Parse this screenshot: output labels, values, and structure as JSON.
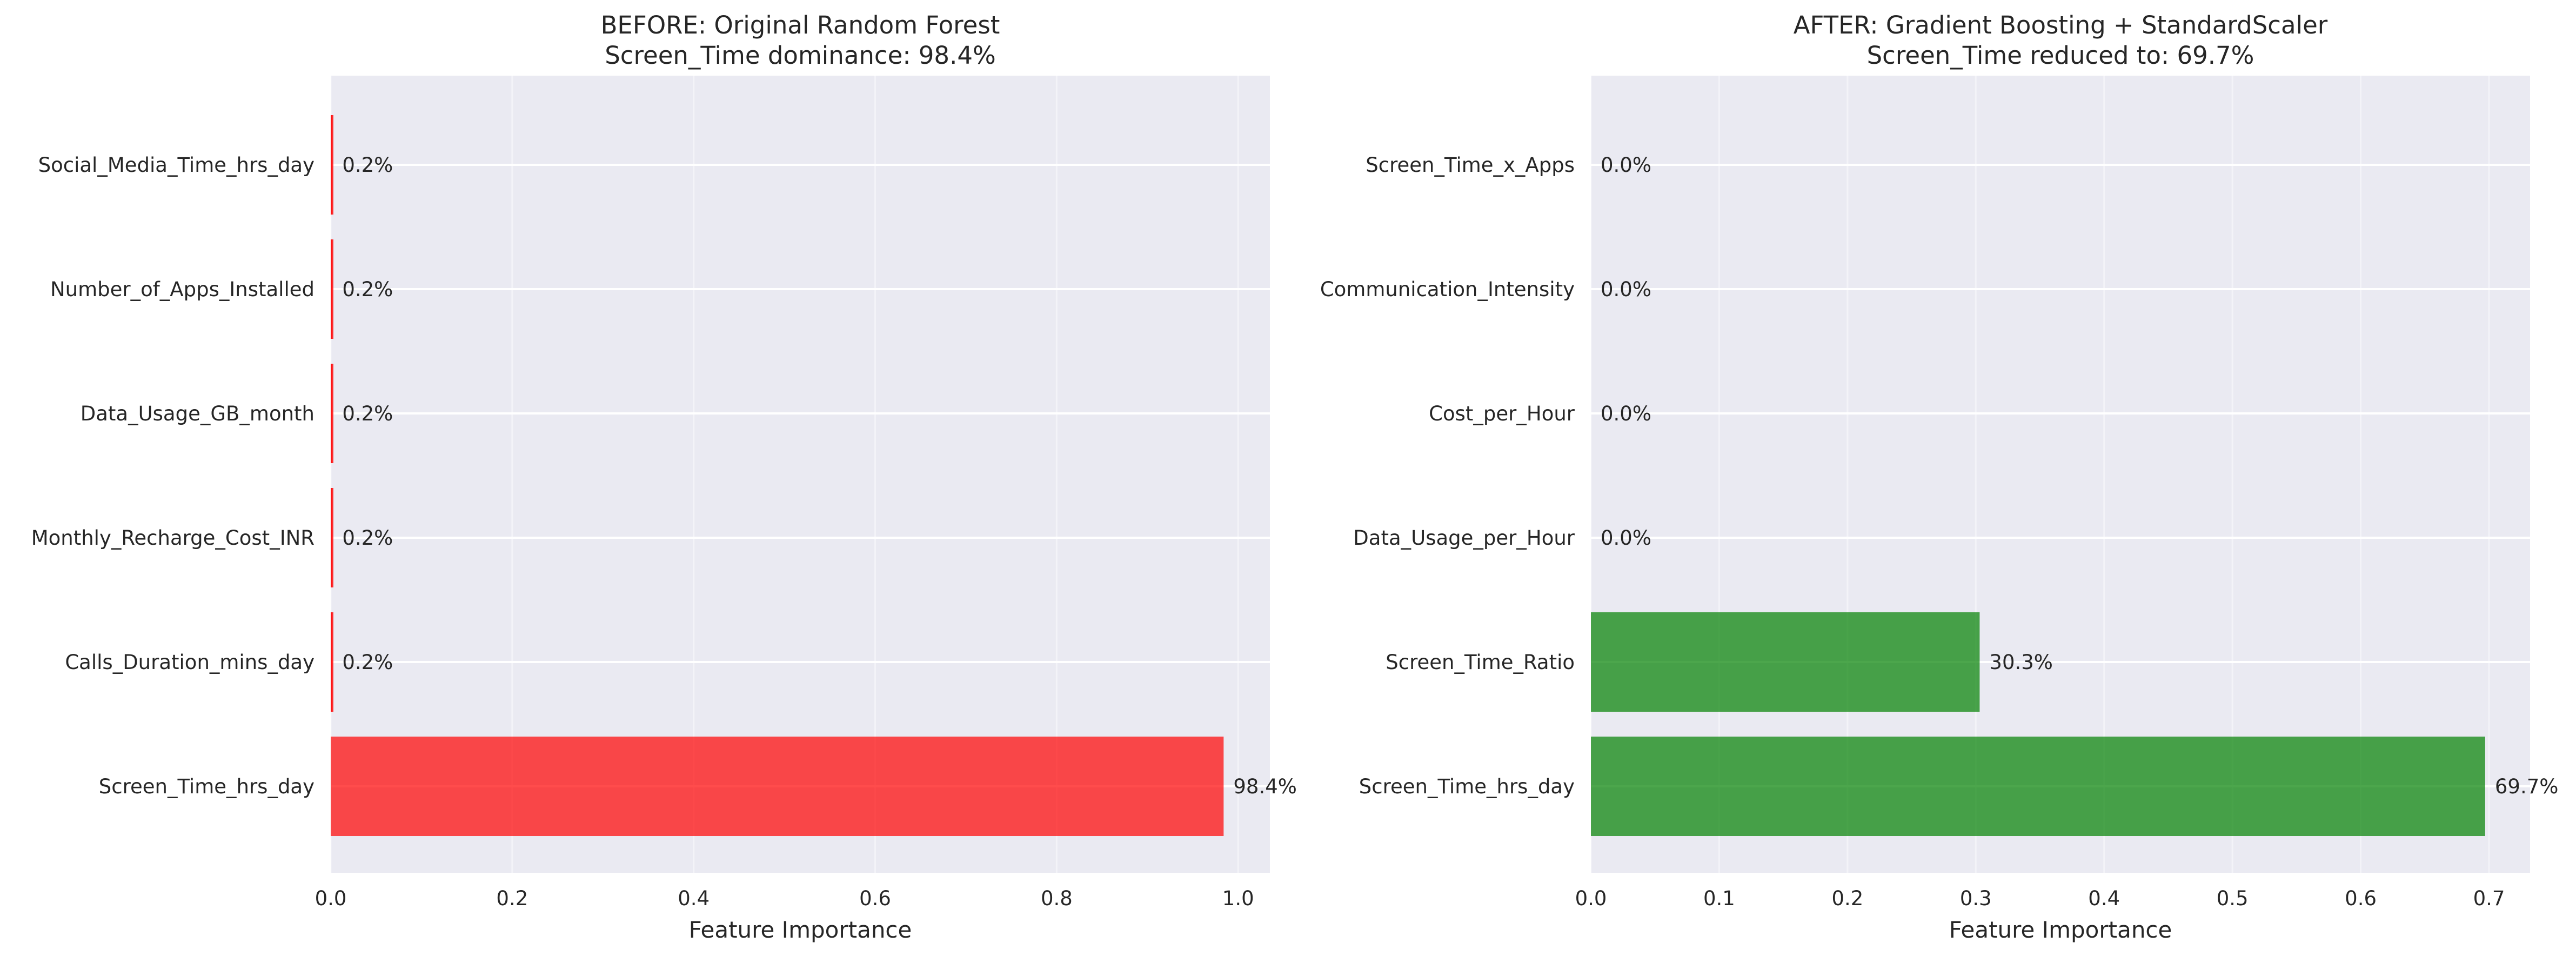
{
  "chart_data": [
    {
      "type": "bar",
      "orientation": "horizontal",
      "title": "BEFORE: Original Random Forest\nScreen_Time dominance: 98.4%",
      "xlabel": "Feature Importance",
      "ylabel": "",
      "categories": [
        "Screen_Time_hrs_day",
        "Calls_Duration_mins_day",
        "Monthly_Recharge_Cost_INR",
        "Data_Usage_GB_month",
        "Number_of_Apps_Installed",
        "Social_Media_Time_hrs_day"
      ],
      "values": [
        0.984,
        0.002,
        0.002,
        0.002,
        0.002,
        0.002
      ],
      "labels": [
        "98.4%",
        "0.2%",
        "0.2%",
        "0.2%",
        "0.2%",
        "0.2%"
      ],
      "xlim": [
        0,
        1.035
      ],
      "xticks": [
        0.0,
        0.2,
        0.4,
        0.6,
        0.8,
        1.0
      ],
      "xtick_labels": [
        "0.0",
        "0.2",
        "0.4",
        "0.6",
        "0.8",
        "1.0"
      ],
      "bar_color": "#ff0000",
      "bar_alpha": 0.7,
      "grid": true
    },
    {
      "type": "bar",
      "orientation": "horizontal",
      "title": "AFTER: Gradient Boosting + StandardScaler\nScreen_Time reduced to: 69.7%",
      "xlabel": "Feature Importance",
      "ylabel": "",
      "categories": [
        "Screen_Time_hrs_day",
        "Screen_Time_Ratio",
        "Data_Usage_per_Hour",
        "Cost_per_Hour",
        "Communication_Intensity",
        "Screen_Time_x_Apps"
      ],
      "values": [
        0.697,
        0.303,
        0.0,
        0.0,
        0.0,
        0.0
      ],
      "labels": [
        "69.7%",
        "30.3%",
        "0.0%",
        "0.0%",
        "0.0%",
        "0.0%"
      ],
      "xlim": [
        0,
        0.732
      ],
      "xticks": [
        0.0,
        0.1,
        0.2,
        0.3,
        0.4,
        0.5,
        0.6,
        0.7
      ],
      "xtick_labels": [
        "0.0",
        "0.1",
        "0.2",
        "0.3",
        "0.4",
        "0.5",
        "0.6",
        "0.7"
      ],
      "bar_color": "#008000",
      "bar_alpha": 0.7,
      "grid": true
    }
  ],
  "style": {
    "axes_bg": "#eaeaf2",
    "grid_color": "#ffffff",
    "text_color": "#262626"
  }
}
